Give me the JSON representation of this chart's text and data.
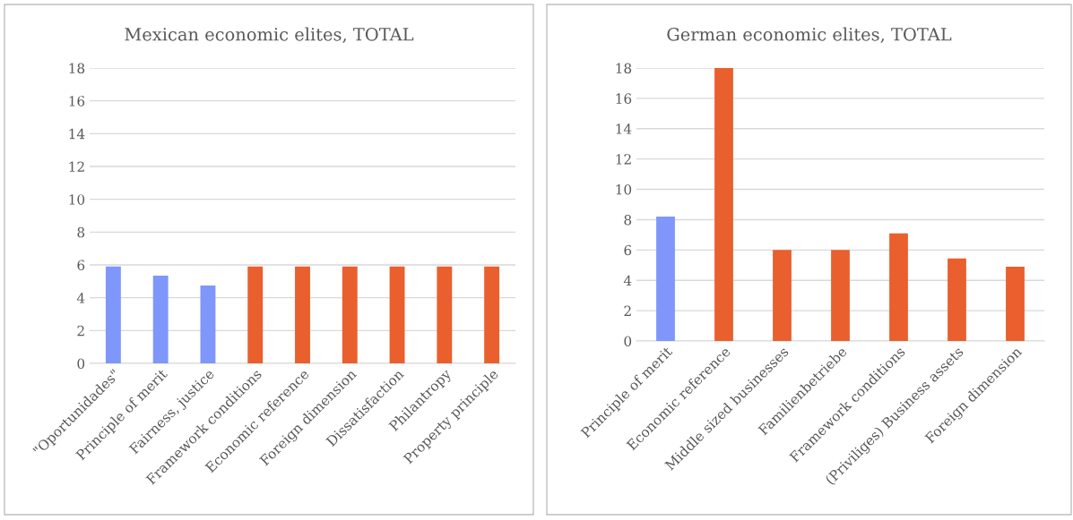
{
  "chart_data": [
    {
      "type": "bar",
      "title": "Mexican economic elites, TOTAL",
      "categories": [
        "\"Oportunidades\"",
        "Principle of merit",
        "Fairness, justice",
        "Framework conditions",
        "Economic reference",
        "Foreign dimension",
        "Dissatisfaction",
        "Philantropy",
        "Property principle"
      ],
      "values": [
        5.9,
        5.35,
        4.75,
        5.9,
        5.9,
        5.9,
        5.9,
        5.9,
        5.9
      ],
      "colors": [
        "#7f96fa",
        "#7f96fa",
        "#7f96fa",
        "#ea5f2e",
        "#ea5f2e",
        "#ea5f2e",
        "#ea5f2e",
        "#ea5f2e",
        "#ea5f2e"
      ],
      "ylim": [
        0,
        18
      ],
      "yticks": [
        0,
        2,
        4,
        6,
        8,
        10,
        12,
        14,
        16,
        18
      ],
      "grid": "y",
      "legend": false
    },
    {
      "type": "bar",
      "title": "German economic elites, TOTAL",
      "categories": [
        "Principle of merit",
        "Economic reference",
        "Middle sized businesses",
        "Familienbetriebe",
        "Framework conditions",
        "(Priviliges) Business assets",
        "Foreign dimension"
      ],
      "values": [
        8.2,
        18,
        6,
        6,
        7.1,
        5.45,
        4.9
      ],
      "colors": [
        "#7f96fa",
        "#ea5f2e",
        "#ea5f2e",
        "#ea5f2e",
        "#ea5f2e",
        "#ea5f2e",
        "#ea5f2e"
      ],
      "ylim": [
        0,
        18
      ],
      "yticks": [
        0,
        2,
        4,
        6,
        8,
        10,
        12,
        14,
        16,
        18
      ],
      "grid": "y",
      "legend": false
    }
  ]
}
